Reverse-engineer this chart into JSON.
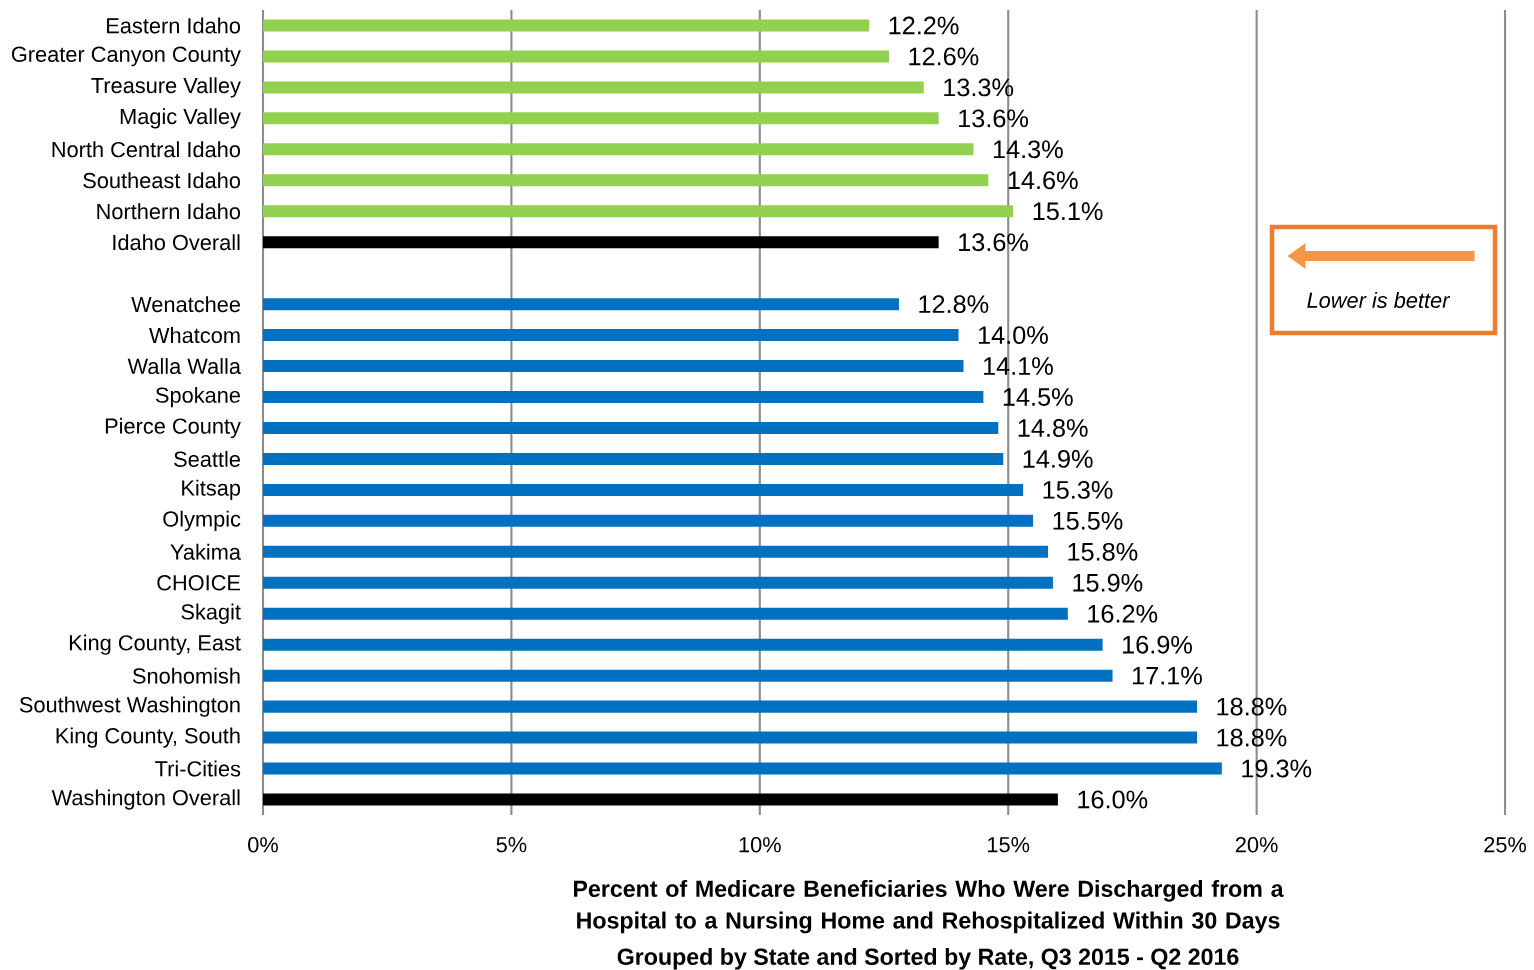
{
  "chart_data": {
    "type": "bar",
    "orientation": "horizontal",
    "xlabel": "Percent of Medicare Beneficiaries Who Were Discharged from a Hospital to a Nursing Home and Rehospitalized Within 30 Days",
    "subtitle": "Grouped by State and Sorted by Rate, Q3 2015 - Q2 2016",
    "categories": [
      "Eastern Idaho",
      "Greater Canyon County",
      "Treasure Valley",
      "Magic Valley",
      "North Central Idaho",
      "Southeast Idaho",
      "Northern Idaho",
      "Idaho Overall",
      null,
      "Wenatchee",
      "Whatcom",
      "Walla Walla",
      "Spokane",
      "Pierce County",
      "Seattle",
      "Kitsap",
      "Olympic",
      "Yakima",
      "CHOICE",
      "Skagit",
      "King County, East",
      "Snohomish",
      "Southwest Washington",
      "King County, South",
      "Tri-Cities",
      "Washington Overall"
    ],
    "values": [
      12.2,
      12.6,
      13.3,
      13.6,
      14.3,
      14.6,
      15.1,
      13.6,
      null,
      12.8,
      14.0,
      14.1,
      14.5,
      14.8,
      14.9,
      15.3,
      15.5,
      15.8,
      15.9,
      16.2,
      16.9,
      17.1,
      18.8,
      18.8,
      19.3,
      16.0
    ],
    "value_labels": [
      "12.2%",
      "12.6%",
      "13.3%",
      "13.6%",
      "14.3%",
      "14.6%",
      "15.1%",
      "13.6%",
      null,
      "12.8%",
      "14.0%",
      "14.1%",
      "14.5%",
      "14.8%",
      "14.9%",
      "15.3%",
      "15.5%",
      "15.8%",
      "15.9%",
      "16.2%",
      "16.9%",
      "17.1%",
      "18.8%",
      "18.8%",
      "19.3%",
      "16.0%"
    ],
    "colors": [
      "#92d050",
      "#92d050",
      "#92d050",
      "#92d050",
      "#92d050",
      "#92d050",
      "#92d050",
      "#000000",
      null,
      "#0070c0",
      "#0070c0",
      "#0070c0",
      "#0070c0",
      "#0070c0",
      "#0070c0",
      "#0070c0",
      "#0070c0",
      "#0070c0",
      "#0070c0",
      "#0070c0",
      "#0070c0",
      "#0070c0",
      "#0070c0",
      "#0070c0",
      "#0070c0",
      "#000000"
    ],
    "xlim": [
      0,
      25
    ],
    "xticks": [
      {
        "value": 0,
        "label": "0%"
      },
      {
        "value": 5,
        "label": "5%"
      },
      {
        "value": 10,
        "label": "10%"
      },
      {
        "value": 15,
        "label": "15%"
      },
      {
        "value": 20,
        "label": "20%"
      },
      {
        "value": 25,
        "label": "25%"
      }
    ],
    "grid": "x",
    "annotations": [
      "Lower is better"
    ]
  }
}
